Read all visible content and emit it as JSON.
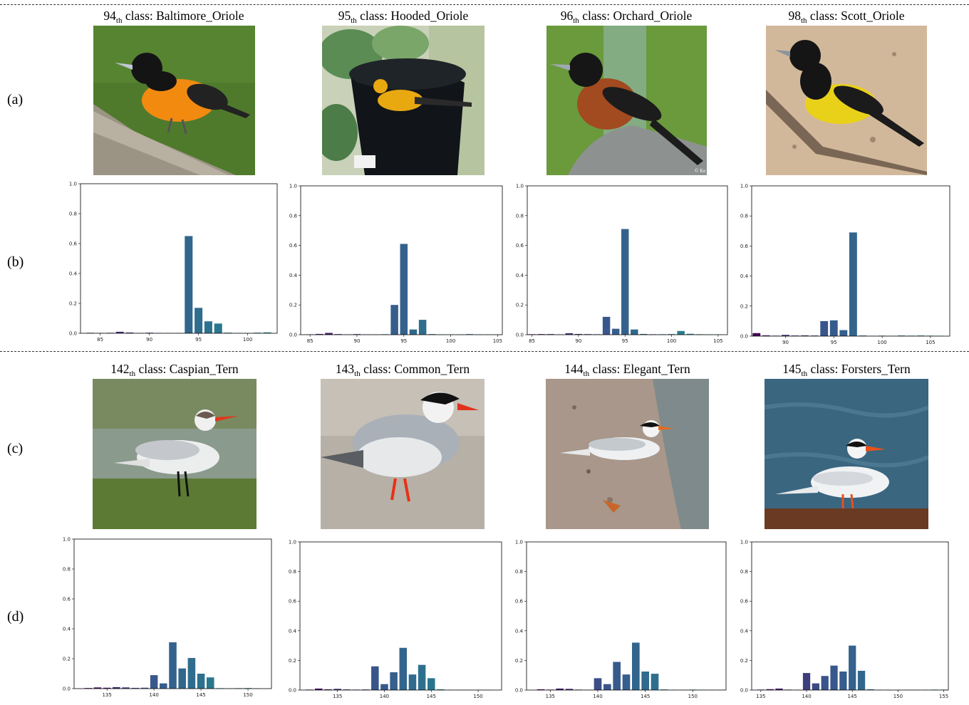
{
  "row_labels": {
    "a": "(a)",
    "b": "(b)",
    "c": "(c)",
    "d": "(d)"
  },
  "panels_top": [
    {
      "num": "94",
      "sub": "th",
      "rest": " class: Baltimore_Oriole",
      "bird_icon": "baltimore-oriole-photo"
    },
    {
      "num": "95",
      "sub": "th",
      "rest": " class: Hooded_Oriole",
      "bird_icon": "hooded-oriole-photo"
    },
    {
      "num": "96",
      "sub": "th",
      "rest": " class: Orchard_Oriole",
      "bird_icon": "orchard-oriole-photo",
      "watermark": "© Ke"
    },
    {
      "num": "98",
      "sub": "th",
      "rest": " class: Scott_Oriole",
      "bird_icon": "scott-oriole-photo"
    }
  ],
  "panels_bottom": [
    {
      "num": "142",
      "sub": "th",
      "rest": " class: Caspian_Tern",
      "bird_icon": "caspian-tern-photo"
    },
    {
      "num": "143",
      "sub": "th",
      "rest": " class: Common_Tern",
      "bird_icon": "common-tern-photo"
    },
    {
      "num": "144",
      "sub": "th",
      "rest": " class: Elegant_Tern",
      "bird_icon": "elegant-tern-photo"
    },
    {
      "num": "145",
      "sub": "th",
      "rest": " class: Forsters_Tern",
      "bird_icon": "forsters-tern-photo"
    }
  ],
  "chart_data": [
    {
      "type": "bar",
      "xlim": [
        83,
        103
      ],
      "ylim": [
        0,
        1.0
      ],
      "x_ticks": [
        85,
        90,
        95,
        100
      ],
      "y_ticks": [
        0.0,
        0.2,
        0.4,
        0.6,
        0.8,
        1.0
      ],
      "x": [
        84,
        85,
        86,
        87,
        88,
        89,
        90,
        91,
        92,
        93,
        94,
        95,
        96,
        97,
        98,
        99,
        100,
        101,
        102
      ],
      "values": [
        0.003,
        0.002,
        0.003,
        0.01,
        0.005,
        0.002,
        0.004,
        0.002,
        0.002,
        0.002,
        0.65,
        0.17,
        0.08,
        0.065,
        0.004,
        0.002,
        0.002,
        0.004,
        0.006
      ]
    },
    {
      "type": "bar",
      "xlim": [
        84,
        105.5
      ],
      "ylim": [
        0,
        1.0
      ],
      "x_ticks": [
        85,
        90,
        95,
        100,
        105
      ],
      "y_ticks": [
        0.0,
        0.2,
        0.4,
        0.6,
        0.8,
        1.0
      ],
      "x": [
        85,
        86,
        87,
        88,
        89,
        90,
        91,
        92,
        93,
        94,
        95,
        96,
        97,
        98,
        99,
        100,
        101,
        102,
        103,
        104,
        105
      ],
      "values": [
        0.002,
        0.005,
        0.012,
        0.004,
        0.002,
        0.004,
        0.002,
        0.002,
        0.003,
        0.2,
        0.61,
        0.035,
        0.1,
        0.004,
        0.002,
        0.002,
        0.002,
        0.004,
        0.002,
        0.002,
        0.002
      ]
    },
    {
      "type": "bar",
      "xlim": [
        84.5,
        106
      ],
      "ylim": [
        0,
        1.0
      ],
      "x_ticks": [
        85,
        90,
        95,
        100,
        105
      ],
      "y_ticks": [
        0.0,
        0.2,
        0.4,
        0.6,
        0.8,
        1.0
      ],
      "x": [
        85,
        86,
        87,
        88,
        89,
        90,
        91,
        92,
        93,
        94,
        95,
        96,
        97,
        98,
        99,
        100,
        101,
        102,
        103,
        104,
        105
      ],
      "values": [
        0.003,
        0.004,
        0.004,
        0.002,
        0.01,
        0.005,
        0.004,
        0.003,
        0.12,
        0.04,
        0.71,
        0.035,
        0.005,
        0.003,
        0.003,
        0.004,
        0.025,
        0.006,
        0.003,
        0.002,
        0.002
      ]
    },
    {
      "type": "bar",
      "xlim": [
        86.5,
        107
      ],
      "ylim": [
        0,
        1.0
      ],
      "x_ticks": [
        90,
        95,
        100,
        105
      ],
      "y_ticks": [
        0.0,
        0.2,
        0.4,
        0.6,
        0.8,
        1.0
      ],
      "x": [
        87,
        88,
        89,
        90,
        91,
        92,
        93,
        94,
        95,
        96,
        97,
        98,
        99,
        100,
        101,
        102,
        103,
        104,
        105,
        106
      ],
      "values": [
        0.02,
        0.005,
        0.003,
        0.008,
        0.004,
        0.005,
        0.004,
        0.1,
        0.105,
        0.04,
        0.69,
        0.004,
        0.002,
        0.003,
        0.002,
        0.004,
        0.003,
        0.004,
        0.003,
        0.002
      ]
    },
    {
      "type": "bar",
      "xlim": [
        131.5,
        152.5
      ],
      "ylim": [
        0,
        1.0
      ],
      "x_ticks": [
        135,
        140,
        145,
        150
      ],
      "y_ticks": [
        0.0,
        0.2,
        0.4,
        0.6,
        0.8,
        1.0
      ],
      "x": [
        133,
        134,
        135,
        136,
        137,
        138,
        139,
        140,
        141,
        142,
        143,
        144,
        145,
        146,
        147,
        148,
        149,
        150,
        151
      ],
      "values": [
        0.004,
        0.008,
        0.006,
        0.01,
        0.008,
        0.005,
        0.006,
        0.09,
        0.035,
        0.31,
        0.135,
        0.205,
        0.1,
        0.075,
        0.003,
        0.002,
        0.003,
        0.004,
        0.002
      ]
    },
    {
      "type": "bar",
      "xlim": [
        131,
        152.5
      ],
      "ylim": [
        0,
        1.0
      ],
      "x_ticks": [
        135,
        140,
        145,
        150
      ],
      "y_ticks": [
        0.0,
        0.2,
        0.4,
        0.6,
        0.8,
        1.0
      ],
      "x": [
        132,
        133,
        134,
        135,
        136,
        137,
        138,
        139,
        140,
        141,
        142,
        143,
        144,
        145,
        146,
        147,
        148,
        149,
        150,
        151
      ],
      "values": [
        0.003,
        0.01,
        0.005,
        0.008,
        0.004,
        0.003,
        0.004,
        0.16,
        0.04,
        0.12,
        0.285,
        0.105,
        0.17,
        0.08,
        0.005,
        0.002,
        0.002,
        0.002,
        0.002,
        0.002
      ]
    },
    {
      "type": "bar",
      "xlim": [
        132.5,
        153.5
      ],
      "ylim": [
        0,
        1.0
      ],
      "x_ticks": [
        135,
        140,
        145,
        150
      ],
      "y_ticks": [
        0.0,
        0.2,
        0.4,
        0.6,
        0.8,
        1.0
      ],
      "x": [
        134,
        135,
        136,
        137,
        138,
        139,
        140,
        141,
        142,
        143,
        144,
        145,
        146,
        147,
        148,
        149,
        150,
        151,
        152,
        153
      ],
      "values": [
        0.005,
        0.003,
        0.01,
        0.008,
        0.003,
        0.002,
        0.08,
        0.04,
        0.19,
        0.105,
        0.32,
        0.125,
        0.11,
        0.004,
        0.002,
        0.002,
        0.003,
        0.002,
        0.002,
        0.002
      ]
    },
    {
      "type": "bar",
      "xlim": [
        134,
        155.5
      ],
      "ylim": [
        0,
        1.0
      ],
      "x_ticks": [
        135,
        140,
        145,
        150,
        155
      ],
      "y_ticks": [
        0.0,
        0.2,
        0.4,
        0.6,
        0.8,
        1.0
      ],
      "x": [
        135,
        136,
        137,
        138,
        139,
        140,
        141,
        142,
        143,
        144,
        145,
        146,
        147,
        148,
        149,
        150,
        151,
        152,
        153,
        154,
        155
      ],
      "values": [
        0.003,
        0.006,
        0.01,
        0.003,
        0.002,
        0.115,
        0.045,
        0.095,
        0.165,
        0.125,
        0.3,
        0.13,
        0.005,
        0.002,
        0.002,
        0.002,
        0.002,
        0.002,
        0.002,
        0.003,
        0.003
      ]
    }
  ]
}
